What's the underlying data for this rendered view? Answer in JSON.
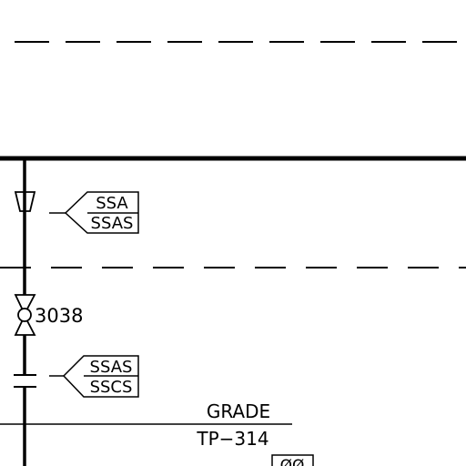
{
  "diagram": {
    "tags": {
      "upper_top": "SSA",
      "upper_bottom": "SSAS",
      "lower_top": "SSAS",
      "lower_bottom": "SSCS"
    },
    "valve_number": "3038",
    "grade_label": "GRADE",
    "grade_ref": "TP−314",
    "corner_box": "ØØ"
  }
}
